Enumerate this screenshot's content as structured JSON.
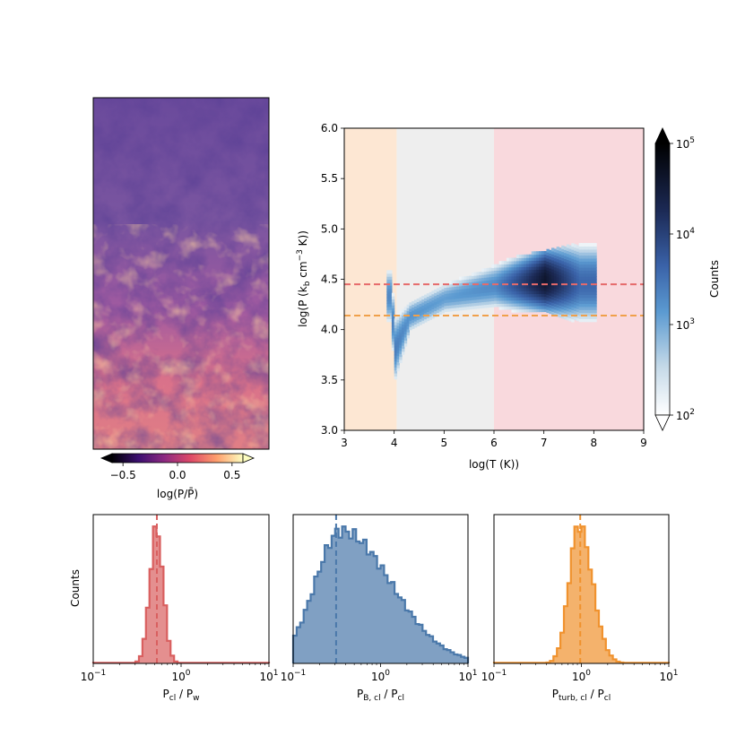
{
  "chart_data": [
    {
      "type": "heatmap",
      "title": "",
      "description": "pressure map",
      "colorbar": {
        "label": "log(P/P̄)",
        "ticks": [
          -0.5,
          0.0,
          0.5
        ],
        "tick_labels": [
          "−0.5",
          "0.0",
          "0.5"
        ],
        "range": [
          -0.6,
          0.6
        ],
        "extend": "both",
        "colormap": [
          "#000004",
          "#3b0f70",
          "#8c2981",
          "#de4968",
          "#fe9f6d",
          "#fcfdbf"
        ]
      }
    },
    {
      "type": "heatmap",
      "title": "",
      "xlabel": "log(T (K))",
      "ylabel": "log(P (k_b cm^-3 K))",
      "xlim": [
        3,
        9
      ],
      "ylim": [
        3.0,
        6.0
      ],
      "xticks": [
        "3",
        "4",
        "5",
        "6",
        "7",
        "8",
        "9"
      ],
      "yticks": [
        "3.0",
        "3.5",
        "4.0",
        "4.5",
        "5.0",
        "5.5",
        "6.0"
      ],
      "bands": [
        {
          "x": [
            3,
            4.05
          ],
          "color": "#fde7d3"
        },
        {
          "x": [
            4.05,
            6
          ],
          "color": "#eeeeee"
        },
        {
          "x": [
            6,
            9
          ],
          "color": "#f9d9dd"
        }
      ],
      "hlines": [
        {
          "y": 4.45,
          "color": "#e66a6a",
          "style": "dashed"
        },
        {
          "y": 4.14,
          "color": "#f0a04a",
          "style": "dashed"
        }
      ],
      "colorbar": {
        "label": "Counts",
        "scale": "log",
        "ticks": [
          "10^2",
          "10^3",
          "10^4",
          "10^5"
        ],
        "range": [
          100,
          100000
        ]
      },
      "density_ridge": [
        {
          "x": 3.9,
          "y": 4.32,
          "w": 0.3,
          "v": 3.3
        },
        {
          "x": 4.0,
          "y": 3.8,
          "w": 0.35,
          "v": 3.4
        },
        {
          "x": 4.3,
          "y": 4.12,
          "w": 0.18,
          "v": 3.2
        },
        {
          "x": 5.0,
          "y": 4.3,
          "w": 0.18,
          "v": 3.1
        },
        {
          "x": 6.0,
          "y": 4.42,
          "w": 0.25,
          "v": 3.3
        },
        {
          "x": 7.0,
          "y": 4.48,
          "w": 0.3,
          "v": 4.6
        },
        {
          "x": 7.7,
          "y": 4.45,
          "w": 0.4,
          "v": 3.6
        }
      ]
    },
    {
      "type": "bar",
      "subtype": "histogram",
      "xlabel": "P_cl / P_w",
      "xlabel_main": "P",
      "xlabel_sub": "cl",
      "xlabel_rest": " / P",
      "xlabel_sub2": "w",
      "ylabel": "Counts",
      "xscale": "log",
      "xlim": [
        0.1,
        10
      ],
      "xticks": [
        "10",
        "10",
        "10"
      ],
      "xtick_exps": [
        "−1",
        "0",
        "1"
      ],
      "color": "#d95f5f",
      "median": 0.53,
      "log_center": -0.28,
      "log_sigma": 0.075,
      "skew": 0.0
    },
    {
      "type": "bar",
      "subtype": "histogram",
      "xlabel": "P_B,cl / P_cl",
      "xlabel_main": "P",
      "xlabel_sub": "B, cl",
      "xlabel_rest": " / P",
      "xlabel_sub2": "cl",
      "xscale": "log",
      "xlim": [
        0.1,
        10
      ],
      "xticks": [
        "10",
        "10",
        "10"
      ],
      "xtick_exps": [
        "−1",
        "0",
        "1"
      ],
      "color": "#4a78aa",
      "median": 0.31,
      "log_center": -0.45,
      "log_sigma": 0.3,
      "skew": 0.9
    },
    {
      "type": "bar",
      "subtype": "histogram",
      "xlabel": "P_turb,cl / P_cl",
      "xlabel_main": "P",
      "xlabel_sub": "turb, cl",
      "xlabel_rest": " / P",
      "xlabel_sub2": "cl",
      "xscale": "log",
      "xlim": [
        0.1,
        10
      ],
      "xticks": [
        "10",
        "10",
        "10"
      ],
      "xtick_exps": [
        "−1",
        "0",
        "1"
      ],
      "color": "#f0922e",
      "median": 0.97,
      "log_center": -0.03,
      "log_sigma": 0.11,
      "skew": 0.4
    }
  ]
}
